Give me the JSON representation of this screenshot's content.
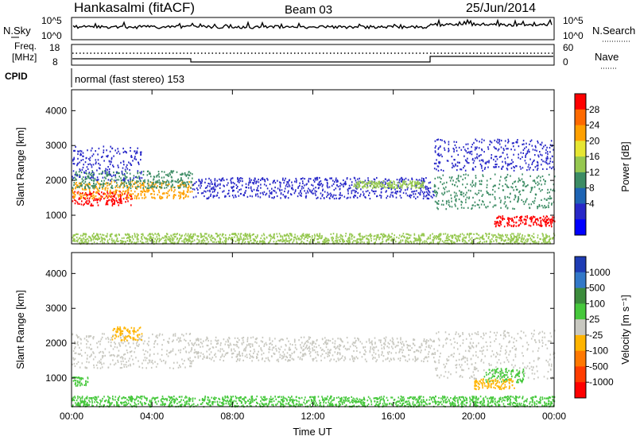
{
  "header": {
    "station": "Hankasalmi (fitACF)",
    "beam": "Beam 03",
    "date": "25/Jun/2014"
  },
  "strips": {
    "nsky_label": "N.Sky",
    "nsky_ticks": [
      "10^5",
      "10^0"
    ],
    "nsearch_label": "N.Search",
    "nsearch_ticks": [
      "10^5",
      "10^0"
    ],
    "freq_label_1": "Freq.",
    "freq_label_2": "[MHz]",
    "freq_ticks": [
      "18",
      "8"
    ],
    "nave_label": "Nave",
    "nave_ticks": [
      "60",
      "0"
    ],
    "cpid_label": "CPID",
    "cpid_text": "normal (fast stereo) 153"
  },
  "chart_data": [
    {
      "type": "heatmap",
      "name": "power",
      "xlabel": "",
      "ylabel": "Slant Range [km]",
      "xlim": [
        0,
        24
      ],
      "ylim": [
        180,
        4600
      ],
      "yticks": [
        "1000",
        "2000",
        "3000",
        "4000"
      ],
      "colorbar": {
        "label": "Power [dB]",
        "ticks": [
          "28",
          "24",
          "20",
          "16",
          "12",
          "8",
          "4"
        ],
        "colors": [
          "#ff0000",
          "#ff6a00",
          "#ffa000",
          "#e6e632",
          "#96c850",
          "#3c8c64",
          "#1e64b4",
          "#2828c8",
          "#0000ff"
        ]
      },
      "scatter_bands": [
        {
          "t": [
            0.0,
            3.0
          ],
          "r": [
            1300,
            1700
          ],
          "color": "#ff0000"
        },
        {
          "t": [
            0.0,
            6.0
          ],
          "r": [
            1500,
            2000
          ],
          "color": "#ffa000"
        },
        {
          "t": [
            0.0,
            6.0
          ],
          "r": [
            1800,
            2300
          ],
          "color": "#3c8c64"
        },
        {
          "t": [
            0.0,
            3.5
          ],
          "r": [
            2000,
            3000
          ],
          "color": "#2828c8"
        },
        {
          "t": [
            6.0,
            18.0
          ],
          "r": [
            1500,
            2100
          ],
          "color": "#2828c8"
        },
        {
          "t": [
            14.0,
            17.5
          ],
          "r": [
            1800,
            2000
          ],
          "color": "#96c850"
        },
        {
          "t": [
            18.0,
            24.0
          ],
          "r": [
            1200,
            2200
          ],
          "color": "#3c8c64"
        },
        {
          "t": [
            21.0,
            24.0
          ],
          "r": [
            700,
            1000
          ],
          "color": "#ff0000"
        },
        {
          "t": [
            18.0,
            24.0
          ],
          "r": [
            2300,
            3200
          ],
          "color": "#2828c8"
        },
        {
          "t": [
            0.0,
            24.0
          ],
          "r": [
            200,
            500
          ],
          "color": "#96c850"
        }
      ]
    },
    {
      "type": "heatmap",
      "name": "velocity",
      "xlabel": "Time UT",
      "ylabel": "Slant Range [km]",
      "xlim": [
        0,
        24
      ],
      "ylim": [
        180,
        4600
      ],
      "xticks": [
        "00:00",
        "04:00",
        "08:00",
        "12:00",
        "16:00",
        "20:00",
        "00:00"
      ],
      "yticks": [
        "1000",
        "2000",
        "3000",
        "4000"
      ],
      "colorbar": {
        "label": "Velocity [m s⁻¹]",
        "ticks": [
          "1000",
          "500",
          "100",
          "25",
          "-25",
          "-100",
          "-500",
          "-1000"
        ],
        "colors": [
          "#1e3cb4",
          "#3278c8",
          "#3c8c3c",
          "#46c83c",
          "#c8c8c0",
          "#ffb400",
          "#ff7800",
          "#ff3c00",
          "#ff0000"
        ]
      },
      "scatter_bands": [
        {
          "t": [
            0.0,
            6.0
          ],
          "r": [
            1300,
            2300
          ],
          "color": "#c8c8c0"
        },
        {
          "t": [
            6.0,
            18.0
          ],
          "r": [
            1500,
            2200
          ],
          "color": "#c8c8c0"
        },
        {
          "t": [
            18.0,
            24.0
          ],
          "r": [
            1000,
            2400
          ],
          "color": "#c8c8c0"
        },
        {
          "t": [
            0.0,
            0.8
          ],
          "r": [
            800,
            1050
          ],
          "color": "#46c83c"
        },
        {
          "t": [
            20.5,
            22.5
          ],
          "r": [
            900,
            1300
          ],
          "color": "#46c83c"
        },
        {
          "t": [
            20.0,
            22.0
          ],
          "r": [
            700,
            1000
          ],
          "color": "#ffb400"
        },
        {
          "t": [
            2.0,
            3.5
          ],
          "r": [
            2100,
            2500
          ],
          "color": "#ffb400"
        },
        {
          "t": [
            0.0,
            24.0
          ],
          "r": [
            200,
            500
          ],
          "color": "#46c83c"
        }
      ]
    }
  ]
}
